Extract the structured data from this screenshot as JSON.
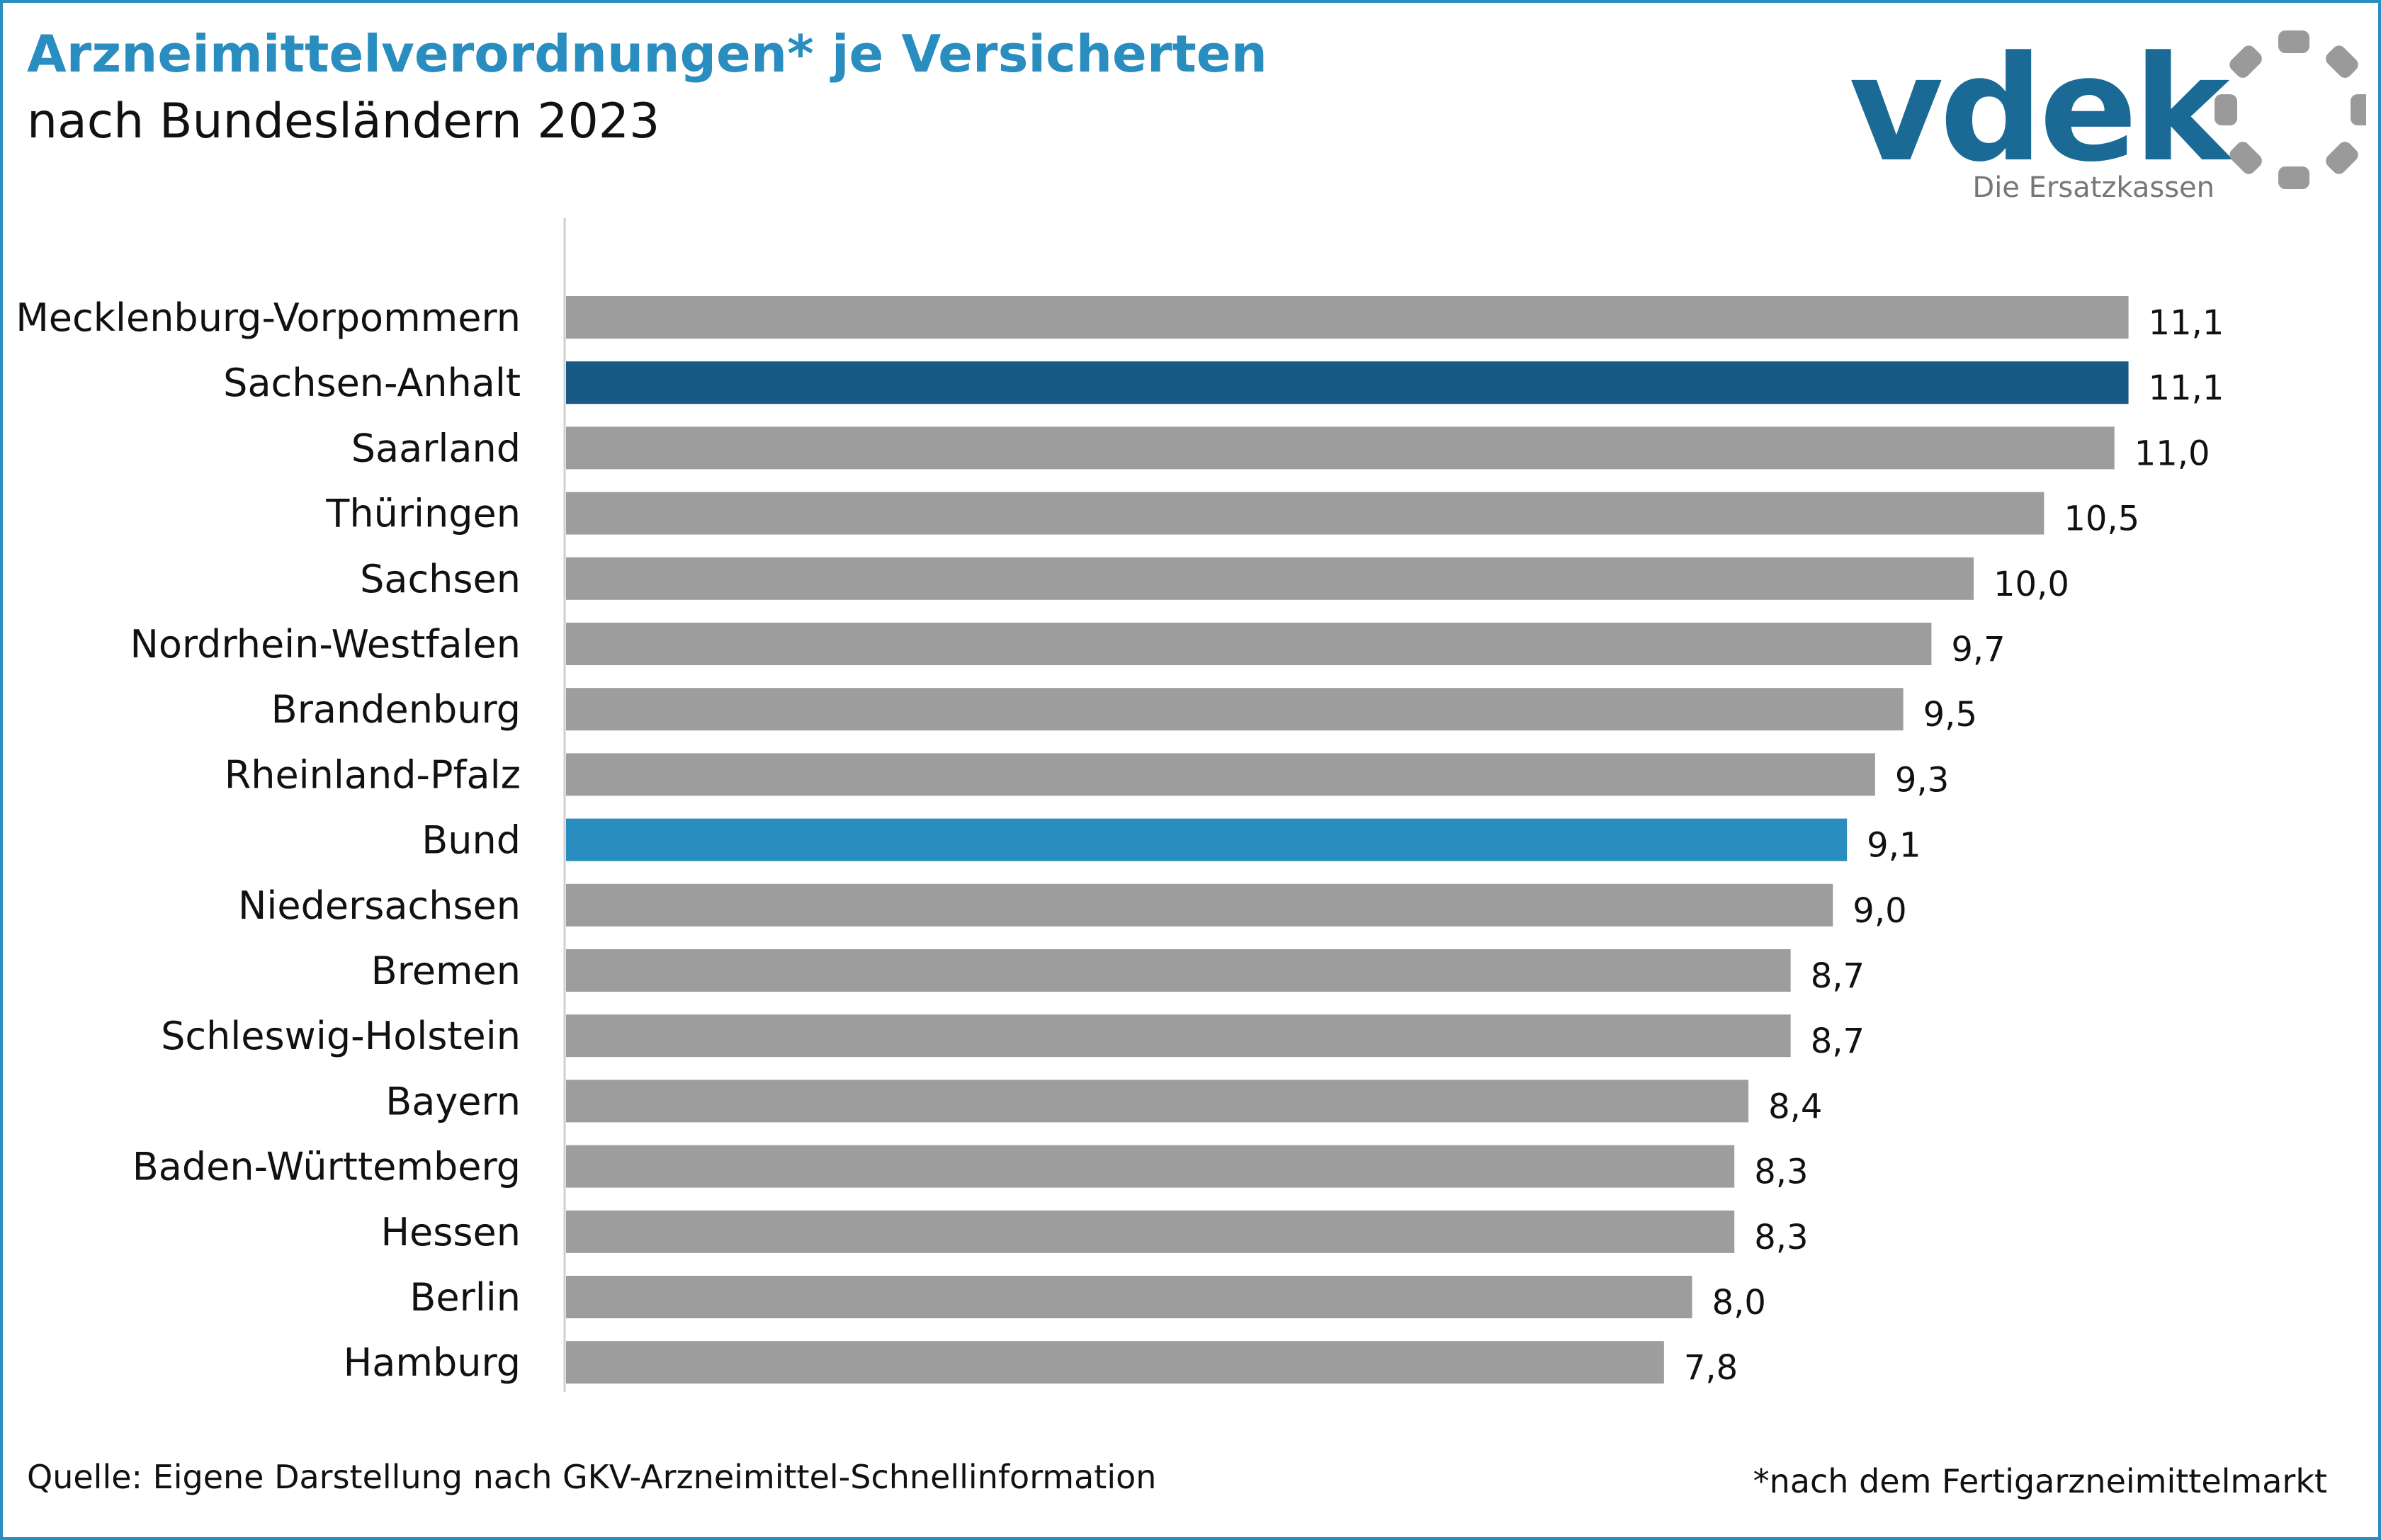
{
  "title": "Arzneimittelverordnungen* je Versicherten",
  "subtitle": "nach Bundesländern 2023",
  "logo": {
    "text": "vdek",
    "tagline": "Die Ersatzkassen",
    "color": "#1b6a96",
    "icon": "ring-of-segments-icon"
  },
  "source": "Quelle: Eigene Darstellung nach GKV-Arzneimittel-Schnellinformation",
  "footnote": "*nach dem Fertigarzneimittelmarkt",
  "colors": {
    "default_bar": "#9d9d9d",
    "highlight_dark": "#175a85",
    "highlight_light": "#2a8dc0"
  },
  "chart_data": {
    "type": "bar",
    "orientation": "horizontal",
    "title": "Arzneimittelverordnungen* je Versicherten",
    "subtitle": "nach Bundesländern 2023",
    "categories": [
      "Mecklenburg-Vorpommern",
      "Sachsen-Anhalt",
      "Saarland",
      "Thüringen",
      "Sachsen",
      "Nordrhein-Westfalen",
      "Brandenburg",
      "Rheinland-Pfalz",
      "Bund",
      "Niedersachsen",
      "Bremen",
      "Schleswig-Holstein",
      "Bayern",
      "Baden-Württemberg",
      "Hessen",
      "Berlin",
      "Hamburg"
    ],
    "values": [
      11.1,
      11.1,
      11.0,
      10.5,
      10.0,
      9.7,
      9.5,
      9.3,
      9.1,
      9.0,
      8.7,
      8.7,
      8.4,
      8.3,
      8.3,
      8.0,
      7.8
    ],
    "value_labels": [
      "11,1",
      "11,1",
      "11,0",
      "10,5",
      "10,0",
      "9,7",
      "9,5",
      "9,3",
      "9,1",
      "9,0",
      "8,7",
      "8,7",
      "8,4",
      "8,3",
      "8,3",
      "8,0",
      "7,8"
    ],
    "highlight": {
      "Sachsen-Anhalt": "#175a85",
      "Bund": "#2a8dc0"
    },
    "xlim": [
      0,
      12
    ],
    "grid": false,
    "legend": "none"
  }
}
